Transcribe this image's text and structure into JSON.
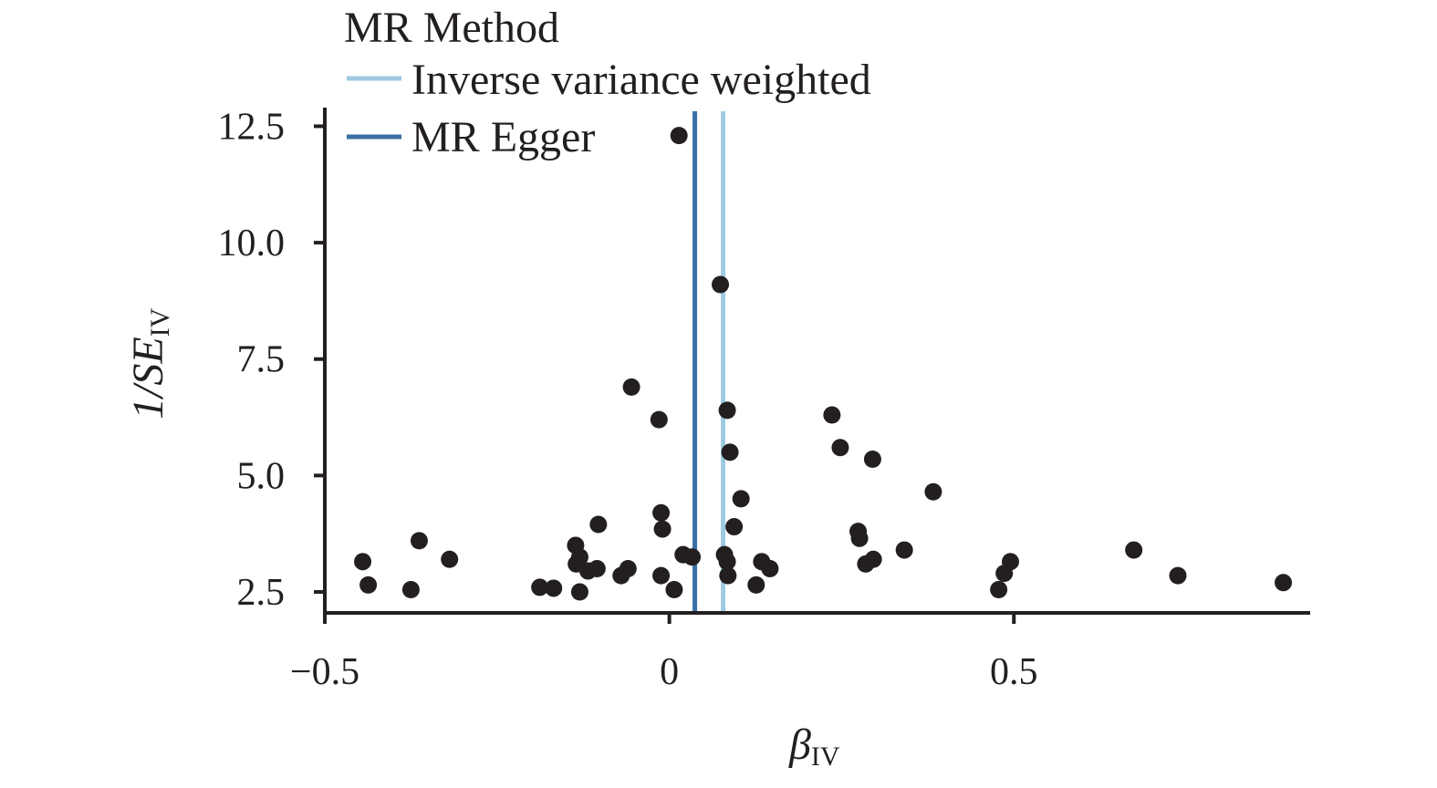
{
  "chart_data": {
    "type": "scatter",
    "title": "",
    "xlabel": {
      "main": "β",
      "sub": "IV"
    },
    "ylabel": {
      "main": "1/SE",
      "sub": "IV"
    },
    "xlim": [
      -0.5,
      0.93
    ],
    "ylim": [
      2.05,
      12.9
    ],
    "x_ticks": [
      -0.5,
      0,
      0.5
    ],
    "x_tick_labels": [
      "−0.5",
      "0",
      "0.5"
    ],
    "y_ticks": [
      2.5,
      5.0,
      7.5,
      10.0,
      12.5
    ],
    "y_tick_labels": [
      "2.5",
      "5.0",
      "7.5",
      "10.0",
      "12.5"
    ],
    "grid": false,
    "legend": {
      "title": "MR Method",
      "placement": "top-left",
      "entries": [
        {
          "label": "Inverse variance weighted",
          "color": "#9ecae1"
        },
        {
          "label": "MR Egger",
          "color": "#3a6fa5"
        }
      ]
    },
    "reference_lines": [
      {
        "name": "Inverse variance weighted",
        "x": 0.078,
        "color": "#9ecae1"
      },
      {
        "name": "MR Egger",
        "x": 0.037,
        "color": "#3a6fa5"
      }
    ],
    "point_color": "#231f20",
    "points": [
      {
        "x": 0.014,
        "y": 12.3
      },
      {
        "x": 0.074,
        "y": 9.1
      },
      {
        "x": -0.055,
        "y": 6.9
      },
      {
        "x": -0.015,
        "y": 6.2
      },
      {
        "x": 0.084,
        "y": 6.4
      },
      {
        "x": 0.236,
        "y": 6.3
      },
      {
        "x": 0.088,
        "y": 5.5
      },
      {
        "x": 0.248,
        "y": 5.6
      },
      {
        "x": 0.295,
        "y": 5.35
      },
      {
        "x": 0.383,
        "y": 4.65
      },
      {
        "x": 0.104,
        "y": 4.5
      },
      {
        "x": -0.012,
        "y": 4.2
      },
      {
        "x": -0.01,
        "y": 3.85
      },
      {
        "x": -0.103,
        "y": 3.95
      },
      {
        "x": 0.094,
        "y": 3.9
      },
      {
        "x": 0.274,
        "y": 3.8
      },
      {
        "x": 0.276,
        "y": 3.65
      },
      {
        "x": -0.363,
        "y": 3.6
      },
      {
        "x": -0.136,
        "y": 3.5
      },
      {
        "x": 0.341,
        "y": 3.4
      },
      {
        "x": 0.674,
        "y": 3.4
      },
      {
        "x": -0.319,
        "y": 3.2
      },
      {
        "x": -0.445,
        "y": 3.15
      },
      {
        "x": -0.13,
        "y": 3.25
      },
      {
        "x": -0.135,
        "y": 3.1
      },
      {
        "x": 0.02,
        "y": 3.3
      },
      {
        "x": 0.033,
        "y": 3.25
      },
      {
        "x": 0.08,
        "y": 3.3
      },
      {
        "x": 0.084,
        "y": 3.15
      },
      {
        "x": 0.134,
        "y": 3.15
      },
      {
        "x": 0.296,
        "y": 3.2
      },
      {
        "x": 0.285,
        "y": 3.1
      },
      {
        "x": 0.495,
        "y": 3.15
      },
      {
        "x": -0.118,
        "y": 2.95
      },
      {
        "x": -0.105,
        "y": 3.0
      },
      {
        "x": -0.06,
        "y": 3.0
      },
      {
        "x": 0.146,
        "y": 3.0
      },
      {
        "x": -0.07,
        "y": 2.85
      },
      {
        "x": -0.012,
        "y": 2.85
      },
      {
        "x": 0.085,
        "y": 2.85
      },
      {
        "x": 0.486,
        "y": 2.9
      },
      {
        "x": 0.738,
        "y": 2.85
      },
      {
        "x": -0.437,
        "y": 2.65
      },
      {
        "x": 0.126,
        "y": 2.65
      },
      {
        "x": 0.891,
        "y": 2.7
      },
      {
        "x": -0.188,
        "y": 2.6
      },
      {
        "x": -0.168,
        "y": 2.58
      },
      {
        "x": -0.375,
        "y": 2.55
      },
      {
        "x": 0.007,
        "y": 2.55
      },
      {
        "x": 0.478,
        "y": 2.55
      },
      {
        "x": -0.13,
        "y": 2.5
      }
    ]
  }
}
